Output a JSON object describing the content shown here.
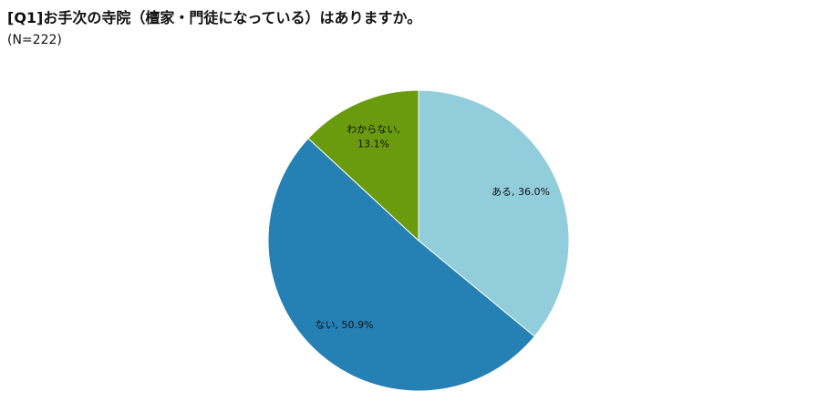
{
  "chart_data": {
    "type": "pie",
    "title": "[Q1]お手次の寺院（檀家・門徒になっている）はありますか。",
    "subtitle": "(N=222)",
    "categories": [
      "ある",
      "ない",
      "わからない"
    ],
    "values": [
      36.0,
      50.9,
      13.1
    ],
    "value_labels": [
      "ある, 36.0%",
      "ない, 50.9%",
      "わからない, 13.1%"
    ],
    "colors": [
      "#92cddc",
      "#2580b3",
      "#6a9a0e"
    ]
  }
}
